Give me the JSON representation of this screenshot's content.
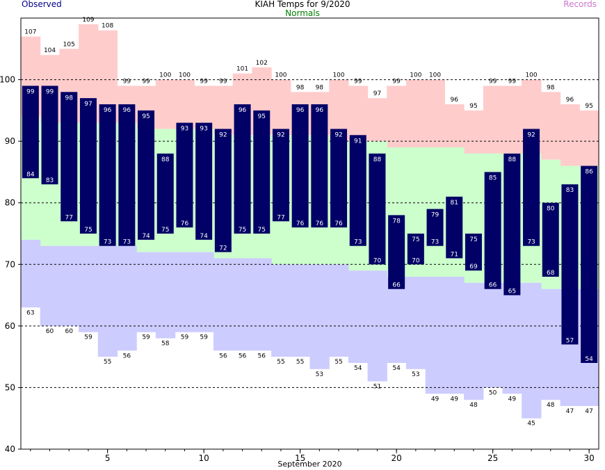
{
  "chart_data": {
    "type": "bar",
    "title": "KIAH Temps for 9/2020",
    "xlabel": "September 2020",
    "ylabel": "",
    "legend": {
      "observed": "Observed",
      "normals": "Normals",
      "records": "Records"
    },
    "colors": {
      "observed": "#000066",
      "observed_label": "#00008b",
      "normals_band": "#ccffcc",
      "normals_label": "#008000",
      "record_high_band": "#ffcccc",
      "record_low_band": "#ccccff",
      "records_label": "#cc77cc"
    },
    "days": [
      1,
      2,
      3,
      4,
      5,
      6,
      7,
      8,
      9,
      10,
      11,
      12,
      13,
      14,
      15,
      16,
      17,
      18,
      19,
      20,
      21,
      22,
      23,
      24,
      25,
      26,
      27,
      28,
      29,
      30
    ],
    "observed_high": [
      99,
      99,
      98,
      97,
      96,
      96,
      95,
      88,
      93,
      93,
      92,
      96,
      95,
      92,
      96,
      96,
      92,
      91,
      88,
      78,
      75,
      79,
      81,
      75,
      85,
      88,
      92,
      80,
      83,
      86
    ],
    "observed_low": [
      84,
      83,
      77,
      75,
      73,
      73,
      74,
      75,
      76,
      74,
      72,
      75,
      75,
      77,
      76,
      76,
      76,
      73,
      70,
      66,
      70,
      73,
      71,
      69,
      66,
      65,
      73,
      68,
      57,
      54
    ],
    "record_high": [
      107,
      104,
      105,
      109,
      108,
      99,
      99,
      100,
      100,
      99,
      99,
      101,
      102,
      100,
      98,
      98,
      100,
      99,
      97,
      99,
      100,
      100,
      96,
      95,
      99,
      99,
      100,
      98,
      96,
      95
    ],
    "record_low": [
      63,
      60,
      60,
      59,
      55,
      56,
      59,
      58,
      59,
      59,
      56,
      56,
      56,
      55,
      55,
      53,
      55,
      54,
      51,
      54,
      53,
      49,
      49,
      48,
      50,
      49,
      45,
      48,
      47,
      47
    ],
    "normal_high": [
      94,
      93,
      93,
      93,
      93,
      93,
      92,
      92,
      92,
      92,
      91,
      91,
      91,
      91,
      91,
      91,
      90,
      90,
      90,
      89,
      89,
      89,
      89,
      88,
      88,
      88,
      88,
      87,
      86,
      86
    ],
    "normal_low": [
      74,
      73,
      73,
      73,
      73,
      73,
      72,
      72,
      72,
      72,
      71,
      71,
      71,
      70,
      70,
      70,
      70,
      69,
      69,
      68,
      68,
      68,
      68,
      67,
      67,
      67,
      67,
      66,
      66,
      66
    ],
    "ylim": [
      40,
      110
    ],
    "yticks": [
      40,
      50,
      60,
      70,
      80,
      90,
      100
    ],
    "xticks": [
      5,
      10,
      15,
      20,
      25,
      30
    ],
    "grid": "dashed at 50, 60, 70, 80, 90, 100"
  }
}
